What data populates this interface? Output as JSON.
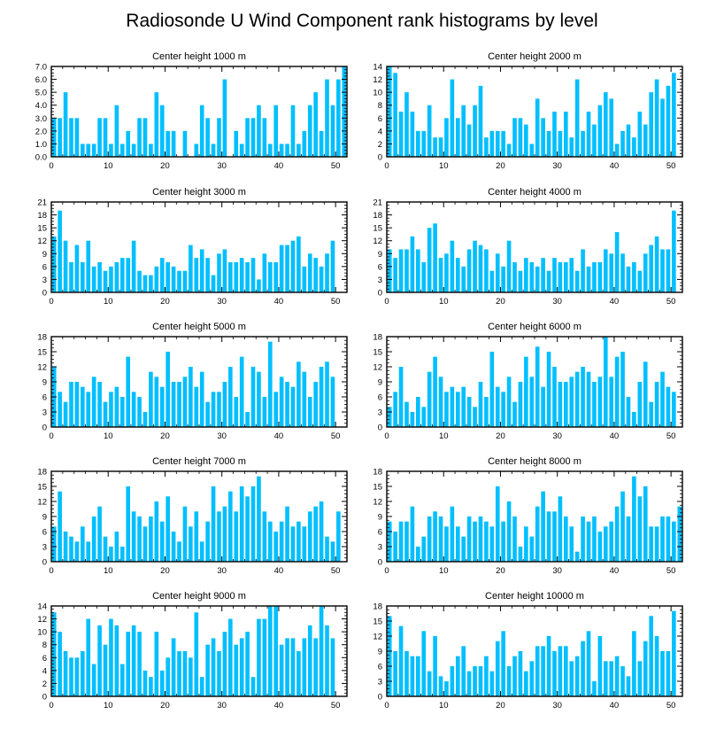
{
  "figure_title": "Radiosonde U Wind Component rank histograms by level",
  "colors": {
    "bar": "#00BFFF",
    "axis": "#000000",
    "background": "#FFFFFF"
  },
  "chart_data": [
    {
      "type": "bar",
      "title": "Center height 1000 m",
      "xlim": [
        0,
        52
      ],
      "ylim": [
        0,
        7
      ],
      "xticks": [
        "0",
        "10",
        "20",
        "30",
        "40",
        "50"
      ],
      "xtick_values": [
        0,
        10,
        20,
        30,
        40,
        50
      ],
      "yticks": [
        "0.0",
        "1.0",
        "2.0",
        "3.0",
        "4.0",
        "5.0",
        "6.0",
        "7.0"
      ],
      "ytick_values": [
        0,
        1,
        2,
        3,
        4,
        5,
        6,
        7
      ],
      "values": [
        3,
        3,
        5,
        3,
        3,
        1,
        1,
        1,
        3,
        3,
        1,
        4,
        1,
        2,
        1,
        3,
        3,
        1,
        5,
        4,
        2,
        2,
        0,
        2,
        0,
        1,
        4,
        3,
        1,
        3,
        6,
        0,
        2,
        1,
        3,
        3,
        4,
        3,
        1,
        4,
        1,
        1,
        4,
        1,
        2,
        4,
        5,
        2,
        6,
        4,
        6,
        7
      ]
    },
    {
      "type": "bar",
      "title": "Center height 2000 m",
      "xlim": [
        0,
        52
      ],
      "ylim": [
        0,
        14
      ],
      "xticks": [
        "0",
        "10",
        "20",
        "30",
        "40",
        "50"
      ],
      "xtick_values": [
        0,
        10,
        20,
        30,
        40,
        50
      ],
      "yticks": [
        "0",
        "2",
        "4",
        "6",
        "8",
        "10",
        "12",
        "14"
      ],
      "ytick_values": [
        0,
        2,
        4,
        6,
        8,
        10,
        12,
        14
      ],
      "values": [
        14,
        13,
        7,
        10,
        7,
        4,
        4,
        8,
        3,
        3,
        6,
        12,
        6,
        8,
        5,
        8,
        11,
        3,
        4,
        4,
        4,
        2,
        6,
        6,
        5,
        2,
        9,
        6,
        4,
        7,
        4,
        7,
        3,
        12,
        4,
        7,
        5,
        8,
        10,
        9,
        2,
        4,
        5,
        3,
        7,
        5,
        10,
        12,
        9,
        11,
        13
      ]
    },
    {
      "type": "bar",
      "title": "Center height 3000 m",
      "xlim": [
        0,
        52
      ],
      "ylim": [
        0,
        21
      ],
      "xticks": [
        "0",
        "10",
        "20",
        "30",
        "40",
        "50"
      ],
      "xtick_values": [
        0,
        10,
        20,
        30,
        40,
        50
      ],
      "yticks": [
        "0",
        "3",
        "6",
        "9",
        "12",
        "15",
        "18",
        "21"
      ],
      "ytick_values": [
        0,
        3,
        6,
        9,
        12,
        15,
        18,
        21
      ],
      "values": [
        13,
        19,
        12,
        7,
        11,
        7,
        12,
        6,
        7,
        5,
        6,
        7,
        8,
        8,
        12,
        5,
        4,
        4,
        6,
        8,
        7,
        6,
        5,
        5,
        11,
        8,
        10,
        8,
        4,
        9,
        10,
        7,
        7,
        8,
        7,
        8,
        3,
        9,
        7,
        7,
        11,
        11,
        12,
        13,
        6,
        9,
        8,
        6,
        9,
        12
      ]
    },
    {
      "type": "bar",
      "title": "Center height 4000 m",
      "xlim": [
        0,
        52
      ],
      "ylim": [
        0,
        21
      ],
      "xticks": [
        "0",
        "10",
        "20",
        "30",
        "40",
        "50"
      ],
      "xtick_values": [
        0,
        10,
        20,
        30,
        40,
        50
      ],
      "yticks": [
        "0",
        "3",
        "6",
        "9",
        "12",
        "15",
        "18",
        "21"
      ],
      "ytick_values": [
        0,
        3,
        6,
        9,
        12,
        15,
        18,
        21
      ],
      "values": [
        10,
        8,
        10,
        10,
        13,
        10,
        7,
        15,
        16,
        8,
        9,
        12,
        8,
        6,
        10,
        12,
        11,
        10,
        5,
        9,
        6,
        12,
        7,
        5,
        8,
        7,
        6,
        8,
        5,
        8,
        7,
        7,
        8,
        5,
        10,
        6,
        7,
        7,
        10,
        9,
        14,
        9,
        6,
        7,
        5,
        9,
        11,
        13,
        10,
        10,
        19
      ]
    },
    {
      "type": "bar",
      "title": "Center height 5000 m",
      "xlim": [
        0,
        52
      ],
      "ylim": [
        0,
        18
      ],
      "xticks": [
        "0",
        "10",
        "20",
        "30",
        "40",
        "50"
      ],
      "xtick_values": [
        0,
        10,
        20,
        30,
        40,
        50
      ],
      "yticks": [
        "0",
        "3",
        "6",
        "9",
        "12",
        "15",
        "18"
      ],
      "ytick_values": [
        0,
        3,
        6,
        9,
        12,
        15,
        18
      ],
      "values": [
        12,
        7,
        5,
        9,
        9,
        8,
        7,
        10,
        9,
        5,
        7,
        8,
        6,
        14,
        7,
        6,
        3,
        11,
        10,
        8,
        15,
        9,
        9,
        10,
        12,
        8,
        11,
        5,
        7,
        7,
        9,
        12,
        6,
        14,
        3,
        12,
        11,
        6,
        17,
        7,
        10,
        9,
        8,
        13,
        11,
        6,
        9,
        12,
        13,
        10
      ]
    },
    {
      "type": "bar",
      "title": "Center height 6000 m",
      "xlim": [
        0,
        52
      ],
      "ylim": [
        0,
        18
      ],
      "xticks": [
        "0",
        "10",
        "20",
        "30",
        "40",
        "50"
      ],
      "xtick_values": [
        0,
        10,
        20,
        30,
        40,
        50
      ],
      "yticks": [
        "0",
        "3",
        "6",
        "9",
        "12",
        "15",
        "18"
      ],
      "ytick_values": [
        0,
        3,
        6,
        9,
        12,
        15,
        18
      ],
      "values": [
        4,
        7,
        12,
        5,
        3,
        6,
        4,
        11,
        14,
        10,
        7,
        8,
        7,
        8,
        6,
        4,
        9,
        6,
        15,
        8,
        7,
        10,
        5,
        9,
        14,
        10,
        16,
        8,
        15,
        12,
        9,
        9,
        10,
        11,
        12,
        11,
        9,
        10,
        18,
        10,
        14,
        15,
        6,
        3,
        9,
        13,
        5,
        9,
        11,
        8,
        7
      ]
    },
    {
      "type": "bar",
      "title": "Center height 7000 m",
      "xlim": [
        0,
        52
      ],
      "ylim": [
        0,
        18
      ],
      "xticks": [
        "0",
        "10",
        "20",
        "30",
        "40",
        "50"
      ],
      "xtick_values": [
        0,
        10,
        20,
        30,
        40,
        50
      ],
      "yticks": [
        "0",
        "3",
        "6",
        "9",
        "12",
        "15",
        "18"
      ],
      "ytick_values": [
        0,
        3,
        6,
        9,
        12,
        15,
        18
      ],
      "values": [
        7,
        14,
        6,
        5,
        4,
        7,
        4,
        9,
        11,
        5,
        3,
        6,
        3,
        15,
        10,
        9,
        7,
        9,
        12,
        8,
        13,
        6,
        4,
        11,
        7,
        10,
        4,
        8,
        15,
        10,
        11,
        14,
        10,
        15,
        13,
        15,
        17,
        10,
        8,
        6,
        8,
        11,
        7,
        8,
        7,
        10,
        11,
        12,
        5,
        4,
        10
      ]
    },
    {
      "type": "bar",
      "title": "Center height 8000 m",
      "xlim": [
        0,
        52
      ],
      "ylim": [
        0,
        18
      ],
      "xticks": [
        "0",
        "10",
        "20",
        "30",
        "40",
        "50"
      ],
      "xtick_values": [
        0,
        10,
        20,
        30,
        40,
        50
      ],
      "yticks": [
        "0",
        "3",
        "6",
        "9",
        "12",
        "15",
        "18"
      ],
      "ytick_values": [
        0,
        3,
        6,
        9,
        12,
        15,
        18
      ],
      "values": [
        8,
        6,
        8,
        8,
        11,
        3,
        5,
        9,
        10,
        9,
        7,
        11,
        7,
        5,
        9,
        8,
        9,
        8,
        7,
        15,
        8,
        12,
        9,
        3,
        7,
        5,
        11,
        14,
        10,
        10,
        13,
        9,
        7,
        2,
        9,
        8,
        9,
        6,
        7,
        8,
        11,
        14,
        9,
        17,
        13,
        15,
        7,
        7,
        9,
        9,
        8,
        11
      ]
    },
    {
      "type": "bar",
      "title": "Center height 9000 m",
      "xlim": [
        0,
        52
      ],
      "ylim": [
        0,
        14
      ],
      "xticks": [
        "0",
        "10",
        "20",
        "30",
        "40",
        "50"
      ],
      "xtick_values": [
        0,
        10,
        20,
        30,
        40,
        50
      ],
      "yticks": [
        "0",
        "2",
        "4",
        "6",
        "8",
        "10",
        "12",
        "14"
      ],
      "ytick_values": [
        0,
        2,
        4,
        6,
        8,
        10,
        12,
        14
      ],
      "values": [
        13,
        10,
        7,
        6,
        6,
        7,
        12,
        5,
        11,
        8,
        12,
        11,
        5,
        10,
        11,
        10,
        4,
        3,
        10,
        4,
        6,
        9,
        7,
        7,
        6,
        13,
        3,
        8,
        9,
        7,
        10,
        12,
        8,
        9,
        10,
        3,
        12,
        12,
        14,
        14,
        8,
        9,
        9,
        7,
        9,
        11,
        9,
        14,
        11,
        9
      ]
    },
    {
      "type": "bar",
      "title": "Center height 10000 m",
      "xlim": [
        0,
        52
      ],
      "ylim": [
        0,
        18
      ],
      "xticks": [
        "0",
        "10",
        "20",
        "30",
        "40",
        "50"
      ],
      "xtick_values": [
        0,
        10,
        20,
        30,
        40,
        50
      ],
      "yticks": [
        "0",
        "3",
        "6",
        "9",
        "12",
        "15",
        "18"
      ],
      "ytick_values": [
        0,
        3,
        6,
        9,
        12,
        15,
        18
      ],
      "values": [
        16,
        9,
        14,
        9,
        8,
        8,
        13,
        5,
        12,
        4,
        3,
        6,
        8,
        10,
        5,
        6,
        6,
        8,
        5,
        11,
        13,
        6,
        8,
        9,
        5,
        7,
        10,
        10,
        12,
        9,
        10,
        10,
        7,
        8,
        11,
        13,
        3,
        12,
        7,
        7,
        8,
        6,
        4,
        13,
        7,
        11,
        16,
        12,
        9,
        9,
        17
      ]
    }
  ]
}
